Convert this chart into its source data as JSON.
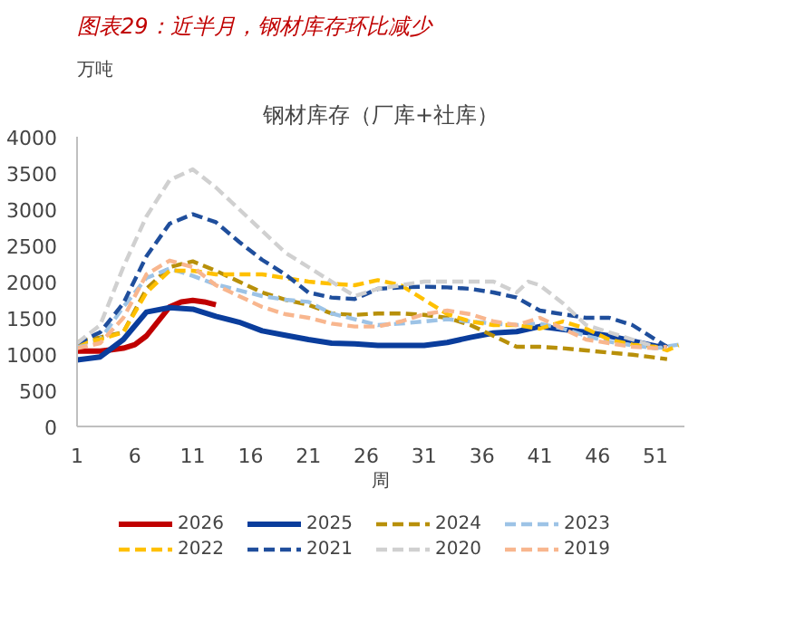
{
  "chart_data": {
    "type": "line",
    "title": "图表29：近半月，钢材库存环比减少",
    "subtitle": "钢材库存（厂库+社库）",
    "ylabel": "万吨",
    "xlabel": "周",
    "xlim": [
      1,
      53.5
    ],
    "xticks": [
      1,
      6,
      11,
      16,
      21,
      26,
      31,
      36,
      41,
      46,
      51
    ],
    "ylim": [
      0,
      4000
    ],
    "yticks": [
      0,
      500,
      1000,
      1500,
      2000,
      2500,
      3000,
      3500,
      4000
    ],
    "grid": false,
    "legend": "bottom",
    "marker": "none",
    "series": [
      {
        "name": "2026",
        "color": "#c00000",
        "line_style": "solid",
        "x": [
          1,
          2,
          3,
          4,
          5,
          6,
          7,
          8,
          9,
          10,
          11,
          12,
          13
        ],
        "values": [
          1040,
          1040,
          1040,
          1060,
          1080,
          1130,
          1250,
          1450,
          1650,
          1720,
          1740,
          1720,
          1680
        ]
      },
      {
        "name": "2025",
        "color": "#0a3d9c",
        "line_style": "solid",
        "x": [
          1,
          3,
          5,
          7,
          9,
          11,
          13,
          15,
          17,
          19,
          21,
          23,
          25,
          27,
          29,
          31,
          33,
          35,
          37,
          39,
          41,
          43,
          45,
          47,
          49,
          51,
          52
        ],
        "values": [
          920,
          960,
          1200,
          1580,
          1640,
          1620,
          1520,
          1440,
          1320,
          1260,
          1200,
          1150,
          1140,
          1120,
          1120,
          1120,
          1160,
          1230,
          1290,
          1310,
          1380,
          1340,
          1300,
          1250,
          1180,
          1110,
          1100
        ]
      },
      {
        "name": "2024",
        "color": "#b8900a",
        "line_style": "dashed",
        "x": [
          1,
          3,
          5,
          7,
          9,
          11,
          13,
          15,
          17,
          19,
          21,
          23,
          25,
          27,
          29,
          31,
          33,
          35,
          37,
          39,
          41,
          43,
          45,
          47,
          49,
          51,
          52
        ],
        "values": [
          1170,
          1230,
          1300,
          1900,
          2200,
          2280,
          2150,
          2000,
          1850,
          1750,
          1680,
          1560,
          1540,
          1560,
          1560,
          1540,
          1500,
          1400,
          1250,
          1100,
          1100,
          1080,
          1050,
          1020,
          990,
          950,
          930
        ]
      },
      {
        "name": "2023",
        "color": "#9dc3e6",
        "line_style": "dashed",
        "x": [
          1,
          3,
          5,
          7,
          9,
          11,
          13,
          15,
          17,
          19,
          21,
          23,
          25,
          27,
          29,
          31,
          33,
          35,
          37,
          39,
          41,
          43,
          45,
          47,
          49,
          51,
          53
        ],
        "values": [
          1130,
          1200,
          1650,
          2050,
          2180,
          2080,
          1960,
          1880,
          1800,
          1750,
          1720,
          1560,
          1480,
          1400,
          1420,
          1450,
          1480,
          1450,
          1420,
          1400,
          1420,
          1350,
          1250,
          1170,
          1120,
          1080,
          1130
        ]
      },
      {
        "name": "2022",
        "color": "#ffc000",
        "line_style": "dashed",
        "x": [
          1,
          3,
          5,
          7,
          9,
          11,
          13,
          15,
          17,
          19,
          21,
          23,
          25,
          27,
          29,
          31,
          33,
          35,
          37,
          39,
          41,
          43,
          45,
          47,
          49,
          51,
          52,
          53
        ],
        "values": [
          1150,
          1200,
          1300,
          1850,
          2150,
          2150,
          2100,
          2100,
          2100,
          2050,
          2000,
          1970,
          1950,
          2020,
          1950,
          1750,
          1550,
          1450,
          1400,
          1400,
          1350,
          1450,
          1350,
          1200,
          1130,
          1100,
          1050,
          1120
        ]
      },
      {
        "name": "2021",
        "color": "#1f4e9c",
        "line_style": "dashed",
        "x": [
          1,
          3,
          5,
          7,
          9,
          11,
          13,
          15,
          17,
          19,
          21,
          23,
          25,
          27,
          29,
          31,
          33,
          35,
          37,
          39,
          41,
          43,
          45,
          47,
          49,
          51,
          52
        ],
        "values": [
          1150,
          1300,
          1700,
          2350,
          2800,
          2930,
          2820,
          2550,
          2300,
          2100,
          1850,
          1780,
          1760,
          1900,
          1920,
          1930,
          1920,
          1900,
          1850,
          1780,
          1600,
          1550,
          1500,
          1500,
          1400,
          1200,
          1100
        ]
      },
      {
        "name": "2020",
        "color": "#d0d0d0",
        "line_style": "dashed",
        "x": [
          1,
          3,
          5,
          7,
          9,
          11,
          13,
          15,
          17,
          19,
          21,
          23,
          25,
          27,
          29,
          31,
          33,
          35,
          37,
          39,
          40,
          41,
          43,
          45,
          47,
          49,
          51
        ],
        "values": [
          1150,
          1400,
          2200,
          2900,
          3400,
          3550,
          3300,
          3000,
          2700,
          2400,
          2200,
          2000,
          1800,
          1900,
          1950,
          2000,
          2000,
          2000,
          2000,
          1850,
          2000,
          1950,
          1700,
          1400,
          1300,
          1200,
          1100
        ]
      },
      {
        "name": "2019",
        "color": "#f8b68e",
        "line_style": "dashed",
        "x": [
          1,
          3,
          5,
          7,
          9,
          11,
          13,
          15,
          17,
          19,
          21,
          23,
          25,
          27,
          29,
          31,
          33,
          35,
          37,
          39,
          41,
          43,
          45,
          47,
          49,
          51,
          52
        ],
        "values": [
          1080,
          1150,
          1500,
          2100,
          2290,
          2200,
          1950,
          1800,
          1650,
          1550,
          1500,
          1420,
          1380,
          1380,
          1450,
          1550,
          1600,
          1550,
          1450,
          1400,
          1500,
          1350,
          1200,
          1150,
          1100,
          1080,
          1100
        ]
      }
    ]
  }
}
